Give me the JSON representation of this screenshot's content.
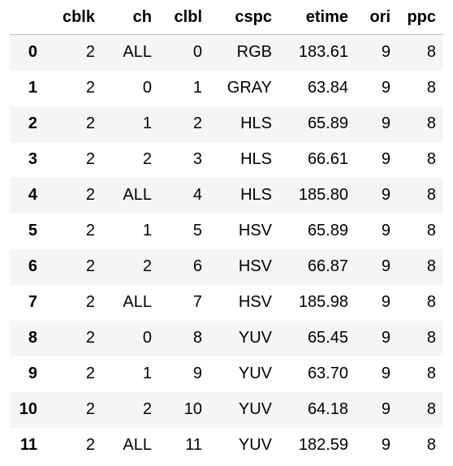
{
  "table": {
    "index_header": "",
    "columns": [
      "cblk",
      "ch",
      "clbl",
      "cspc",
      "etime",
      "ori",
      "ppc"
    ],
    "rows": [
      {
        "index": "0",
        "cells": [
          "2",
          "ALL",
          "0",
          "RGB",
          "183.61",
          "9",
          "8"
        ]
      },
      {
        "index": "1",
        "cells": [
          "2",
          "0",
          "1",
          "GRAY",
          "63.84",
          "9",
          "8"
        ]
      },
      {
        "index": "2",
        "cells": [
          "2",
          "1",
          "2",
          "HLS",
          "65.89",
          "9",
          "8"
        ]
      },
      {
        "index": "3",
        "cells": [
          "2",
          "2",
          "3",
          "HLS",
          "66.61",
          "9",
          "8"
        ]
      },
      {
        "index": "4",
        "cells": [
          "2",
          "ALL",
          "4",
          "HLS",
          "185.80",
          "9",
          "8"
        ]
      },
      {
        "index": "5",
        "cells": [
          "2",
          "1",
          "5",
          "HSV",
          "65.89",
          "9",
          "8"
        ]
      },
      {
        "index": "6",
        "cells": [
          "2",
          "2",
          "6",
          "HSV",
          "66.87",
          "9",
          "8"
        ]
      },
      {
        "index": "7",
        "cells": [
          "2",
          "ALL",
          "7",
          "HSV",
          "185.98",
          "9",
          "8"
        ]
      },
      {
        "index": "8",
        "cells": [
          "2",
          "0",
          "8",
          "YUV",
          "65.45",
          "9",
          "8"
        ]
      },
      {
        "index": "9",
        "cells": [
          "2",
          "1",
          "9",
          "YUV",
          "63.70",
          "9",
          "8"
        ]
      },
      {
        "index": "10",
        "cells": [
          "2",
          "2",
          "10",
          "YUV",
          "64.18",
          "9",
          "8"
        ]
      },
      {
        "index": "11",
        "cells": [
          "2",
          "ALL",
          "11",
          "YUV",
          "182.59",
          "9",
          "8"
        ]
      }
    ]
  },
  "colors": {
    "stripe": "#f5f5f5",
    "header_rule": "#bdbdbd",
    "text": "#000000"
  }
}
